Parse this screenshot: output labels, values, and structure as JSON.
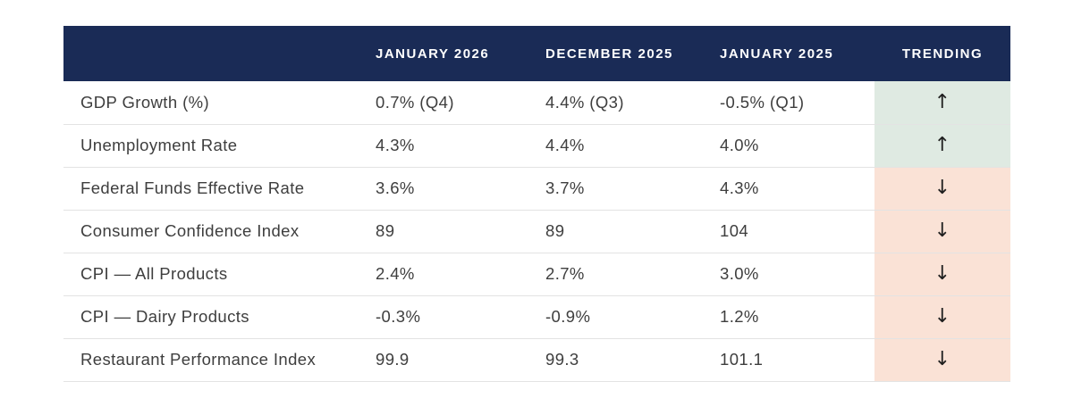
{
  "table": {
    "columns": {
      "label": "",
      "jan2026": "JANUARY 2026",
      "dec2025": "DECEMBER 2025",
      "jan2025": "JANUARY 2025",
      "trending": "TRENDING"
    },
    "rows": [
      {
        "label": "GDP Growth (%)",
        "jan2026": "0.7% (Q4)",
        "dec2025": "4.4% (Q3)",
        "jan2025": "-0.5% (Q1)",
        "trend": "up"
      },
      {
        "label": "Unemployment Rate",
        "jan2026": "4.3%",
        "dec2025": "4.4%",
        "jan2025": "4.0%",
        "trend": "up"
      },
      {
        "label": "Federal Funds Effective Rate",
        "jan2026": "3.6%",
        "dec2025": "3.7%",
        "jan2025": "4.3%",
        "trend": "down"
      },
      {
        "label": "Consumer Confidence Index",
        "jan2026": "89",
        "dec2025": "89",
        "jan2025": "104",
        "trend": "down"
      },
      {
        "label": "CPI — All Products",
        "jan2026": "2.4%",
        "dec2025": "2.7%",
        "jan2025": "3.0%",
        "trend": "down"
      },
      {
        "label": "CPI — Dairy Products",
        "jan2026": "-0.3%",
        "dec2025": "-0.9%",
        "jan2025": "1.2%",
        "trend": "down"
      },
      {
        "label": "Restaurant Performance Index",
        "jan2026": "99.9",
        "dec2025": "99.3",
        "jan2025": "101.1",
        "trend": "down"
      }
    ]
  },
  "icons": {
    "up": "↑",
    "down": "↓"
  },
  "colors": {
    "header_background": "#1a2b56",
    "header_text": "#ffffff",
    "trend_up_background": "#dfeae2",
    "trend_down_background": "#fae2d6",
    "row_border": "#e3e3e3",
    "body_text": "#3e3e3e",
    "arrow": "#1f1f1f"
  }
}
